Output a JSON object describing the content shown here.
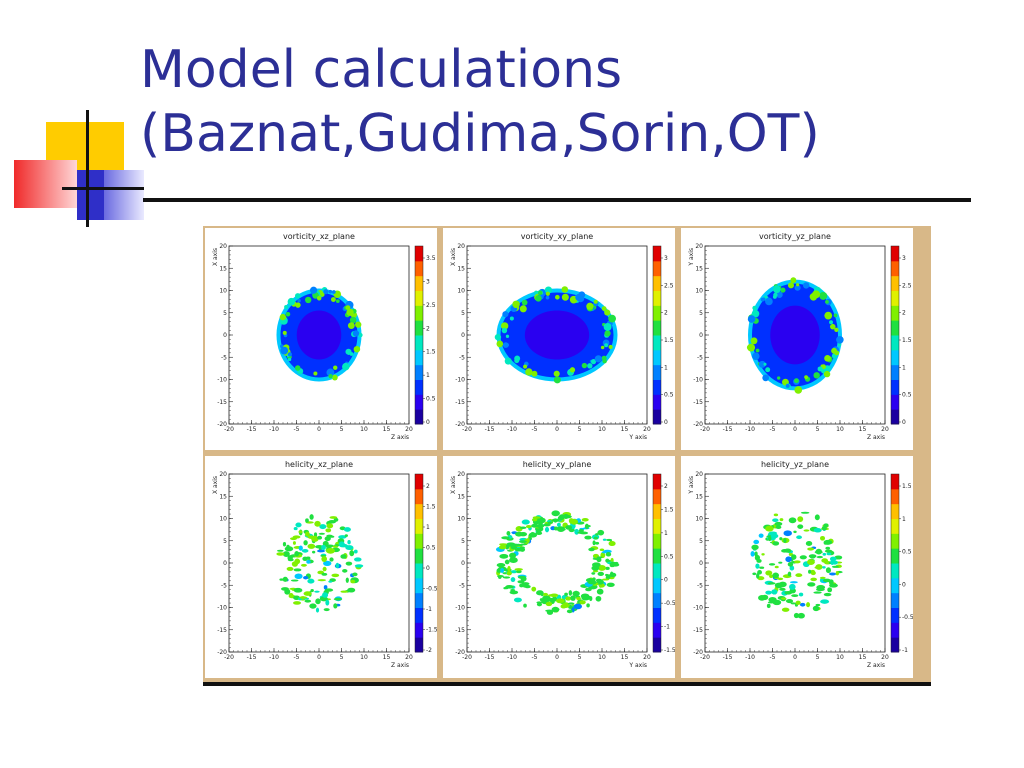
{
  "slide": {
    "title_line1": "Model calculations",
    "title_line2": "(Baznat,Gudima,Sorin,OT)"
  },
  "colors": {
    "title": "#2c2f96",
    "deco_yellow": "#ffcc00",
    "deco_red": "#f03030",
    "deco_blue": "#2f2fc8",
    "figure_border": "#d8b888"
  },
  "chart_data": [
    {
      "type": "heatmap",
      "title": "vorticity_xz_plane",
      "xlabel": "Z axis",
      "ylabel": "X axis",
      "xlim": [
        -20,
        20
      ],
      "ylim": [
        -20,
        20
      ],
      "x_ticks": [
        "-20",
        "-15",
        "-10",
        "-5",
        "0",
        "5",
        "10",
        "15",
        "20"
      ],
      "y_ticks": [
        "-20",
        "-15",
        "-10",
        "-5",
        "0",
        "5",
        "10",
        "15",
        "20"
      ],
      "colorbar_ticks": [
        "3.5",
        "3",
        "2.5",
        "2",
        "1.5",
        "1",
        "0.5",
        "0"
      ],
      "shape": "ellipse",
      "center": [
        0,
        0
      ],
      "radius_x": 9,
      "radius_y": 10,
      "dominant": "core"
    },
    {
      "type": "heatmap",
      "title": "vorticity_xy_plane",
      "xlabel": "Y axis",
      "ylabel": "X axis",
      "xlim": [
        -20,
        20
      ],
      "ylim": [
        -20,
        20
      ],
      "x_ticks": [
        "-20",
        "-15",
        "-10",
        "-5",
        "0",
        "5",
        "10",
        "15",
        "20"
      ],
      "y_ticks": [
        "-20",
        "-15",
        "-10",
        "-5",
        "0",
        "5",
        "10",
        "15",
        "20"
      ],
      "colorbar_ticks": [
        "3",
        "2.5",
        "2",
        "1.5",
        "1",
        "0.5",
        "0"
      ],
      "shape": "ellipse",
      "center": [
        0,
        0
      ],
      "radius_x": 13,
      "radius_y": 10,
      "dominant": "core"
    },
    {
      "type": "heatmap",
      "title": "vorticity_yz_plane",
      "xlabel": "Z axis",
      "ylabel": "Y axis",
      "xlim": [
        -20,
        20
      ],
      "ylim": [
        -20,
        20
      ],
      "x_ticks": [
        "-20",
        "-15",
        "-10",
        "-5",
        "0",
        "5",
        "10",
        "15",
        "20"
      ],
      "y_ticks": [
        "-20",
        "-15",
        "-10",
        "-5",
        "0",
        "5",
        "10",
        "15",
        "20"
      ],
      "colorbar_ticks": [
        "3",
        "2.5",
        "2",
        "1.5",
        "1",
        "0.5",
        "0"
      ],
      "shape": "ellipse",
      "center": [
        0,
        0
      ],
      "radius_x": 10,
      "radius_y": 12,
      "dominant": "core"
    },
    {
      "type": "heatmap",
      "title": "helicity_xz_plane",
      "xlabel": "Z axis",
      "ylabel": "X axis",
      "xlim": [
        -20,
        20
      ],
      "ylim": [
        -20,
        20
      ],
      "x_ticks": [
        "-20",
        "-15",
        "-10",
        "-5",
        "0",
        "5",
        "10",
        "15",
        "20"
      ],
      "y_ticks": [
        "-20",
        "-15",
        "-10",
        "-5",
        "0",
        "5",
        "10",
        "15",
        "20"
      ],
      "colorbar_ticks": [
        "2",
        "1.5",
        "1",
        "0.5",
        "0",
        "-0.5",
        "-1",
        "-1.5",
        "-2"
      ],
      "shape": "ellipse",
      "center": [
        0,
        0
      ],
      "radius_x": 9,
      "radius_y": 11,
      "dominant": "scatter"
    },
    {
      "type": "heatmap",
      "title": "helicity_xy_plane",
      "xlabel": "Y axis",
      "ylabel": "X axis",
      "xlim": [
        -20,
        20
      ],
      "ylim": [
        -20,
        20
      ],
      "x_ticks": [
        "-20",
        "-15",
        "-10",
        "-5",
        "0",
        "5",
        "10",
        "15",
        "20"
      ],
      "y_ticks": [
        "-20",
        "-15",
        "-10",
        "-5",
        "0",
        "5",
        "10",
        "15",
        "20"
      ],
      "colorbar_ticks": [
        "2",
        "1.5",
        "1",
        "0.5",
        "0",
        "-0.5",
        "-1",
        "-1.5"
      ],
      "shape": "ring",
      "center": [
        0,
        0
      ],
      "radius_x": 13,
      "radius_y": 11,
      "dominant": "ring"
    },
    {
      "type": "heatmap",
      "title": "helicity_yz_plane",
      "xlabel": "Z axis",
      "ylabel": "Y axis",
      "xlim": [
        -20,
        20
      ],
      "ylim": [
        -20,
        20
      ],
      "x_ticks": [
        "-20",
        "-15",
        "-10",
        "-5",
        "0",
        "5",
        "10",
        "15",
        "20"
      ],
      "y_ticks": [
        "-20",
        "-15",
        "-10",
        "-5",
        "0",
        "5",
        "10",
        "15",
        "20"
      ],
      "colorbar_ticks": [
        "1.5",
        "1",
        "0.5",
        "0",
        "-0.5",
        "-1"
      ],
      "shape": "ellipse",
      "center": [
        0,
        0
      ],
      "radius_x": 10,
      "radius_y": 12,
      "dominant": "scatter"
    }
  ]
}
